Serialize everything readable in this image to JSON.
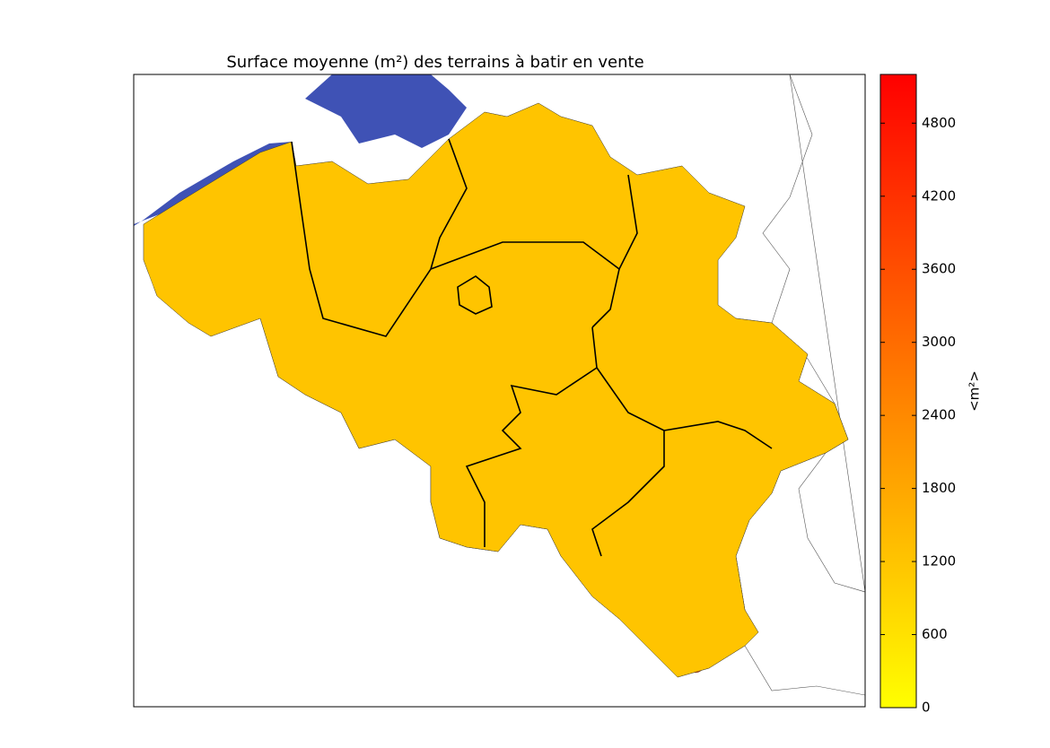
{
  "chart_data": {
    "type": "choropleth",
    "title": "Surface moyenne (m²) des terrains à batir en vente",
    "colorbar": {
      "label": "<m²>",
      "lim": [
        0,
        5200
      ],
      "ticks": [
        0,
        600,
        1200,
        1800,
        2400,
        3000,
        3600,
        4200,
        4800
      ],
      "colors": [
        "#ffff00",
        "#ff0000"
      ]
    }
  }
}
